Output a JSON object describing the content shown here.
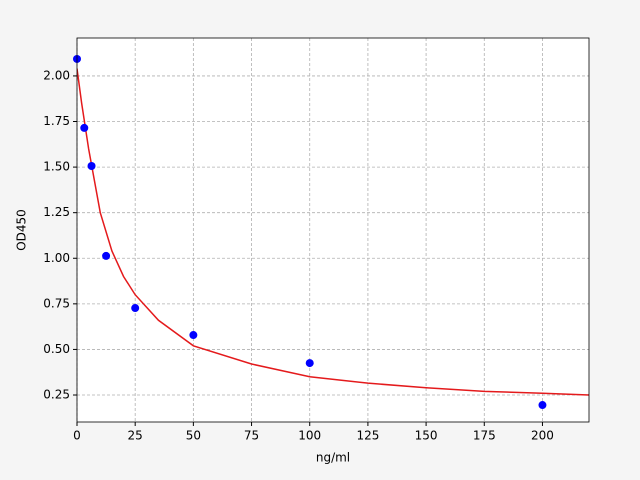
{
  "chart_data": {
    "type": "scatter",
    "xlabel": "ng/ml",
    "ylabel": "OD450",
    "xlim": [
      0,
      220
    ],
    "ylim": [
      0.102,
      2.208
    ],
    "xticks": [
      0,
      25,
      50,
      75,
      100,
      125,
      150,
      175,
      200
    ],
    "yticks": [
      {
        "value": 0.25,
        "label": "0.25"
      },
      {
        "value": 0.5,
        "label": "0.50"
      },
      {
        "value": 0.75,
        "label": "0.75"
      },
      {
        "value": 1.0,
        "label": "1.00"
      },
      {
        "value": 1.25,
        "label": "1.25"
      },
      {
        "value": 1.5,
        "label": "1.50"
      },
      {
        "value": 1.75,
        "label": "1.75"
      },
      {
        "value": 2.0,
        "label": "2.00"
      }
    ],
    "grid": true,
    "series": [
      {
        "type": "line",
        "color": "#e41a1c",
        "x": [
          0,
          2,
          5,
          10,
          15,
          20,
          25,
          35,
          50,
          75,
          100,
          125,
          150,
          175,
          200,
          220
        ],
        "values": [
          2.04,
          1.85,
          1.6,
          1.25,
          1.04,
          0.9,
          0.8,
          0.66,
          0.52,
          0.42,
          0.35,
          0.315,
          0.29,
          0.27,
          0.26,
          0.25
        ]
      },
      {
        "type": "scatter",
        "color": "#0000ff",
        "x": [
          0,
          3.125,
          6.25,
          12.5,
          25,
          50,
          100,
          200
        ],
        "values": [
          2.093,
          1.715,
          1.506,
          1.013,
          0.727,
          0.579,
          0.425,
          0.195
        ]
      }
    ]
  }
}
